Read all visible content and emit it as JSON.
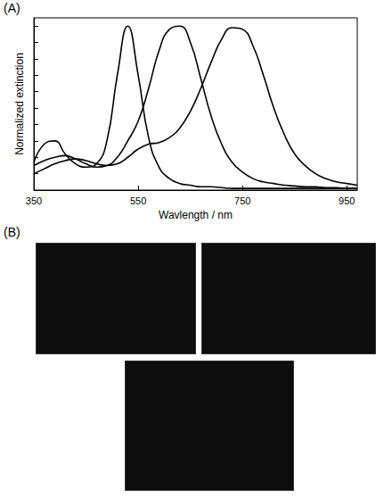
{
  "panel_labels": [
    "(A)",
    "(B)"
  ],
  "chart_data": {
    "type": "line",
    "x_label": "Wavlength / nm",
    "y_label": "Normalized extinction",
    "x": [
      350,
      370,
      390,
      410,
      430,
      450,
      470,
      490,
      510,
      530,
      550,
      570,
      590,
      610,
      630,
      650,
      670,
      690,
      710,
      730,
      750,
      770,
      790,
      810,
      830,
      850,
      870,
      890,
      910,
      930,
      950,
      970
    ],
    "series": [
      {
        "color": "#000000",
        "values": [
          0.17,
          0.28,
          0.3,
          0.22,
          0.16,
          0.14,
          0.16,
          0.3,
          0.7,
          1.0,
          0.7,
          0.32,
          0.14,
          0.07,
          0.04,
          0.03,
          0.02,
          0.02,
          0.015,
          0.01,
          0.01,
          0.01,
          0.01,
          0.01,
          0.01,
          0.01,
          0.01,
          0.01,
          0.01,
          0.01,
          0.01,
          0.01
        ]
      },
      {
        "color": "#000000",
        "values": [
          0.15,
          0.18,
          0.2,
          0.21,
          0.19,
          0.16,
          0.14,
          0.15,
          0.2,
          0.3,
          0.42,
          0.62,
          0.85,
          0.98,
          1.0,
          0.9,
          0.68,
          0.45,
          0.28,
          0.17,
          0.11,
          0.07,
          0.05,
          0.04,
          0.03,
          0.025,
          0.02,
          0.02,
          0.015,
          0.015,
          0.01,
          0.01
        ]
      },
      {
        "color": "#000000",
        "values": [
          0.1,
          0.13,
          0.16,
          0.18,
          0.19,
          0.18,
          0.16,
          0.15,
          0.16,
          0.2,
          0.25,
          0.28,
          0.29,
          0.32,
          0.38,
          0.48,
          0.62,
          0.78,
          0.92,
          0.99,
          0.98,
          0.88,
          0.7,
          0.5,
          0.34,
          0.22,
          0.15,
          0.1,
          0.07,
          0.05,
          0.04,
          0.03
        ]
      }
    ],
    "xlim": [
      350,
      970
    ],
    "xticks": [
      350,
      550,
      750,
      950
    ],
    "ylim": [
      0,
      1.05
    ],
    "yticks": [
      0,
      0.1,
      0.2,
      0.3,
      0.4,
      0.5,
      0.6,
      0.7,
      0.8,
      0.9,
      1.0
    ],
    "tick_labels": "x",
    "grid": false
  }
}
